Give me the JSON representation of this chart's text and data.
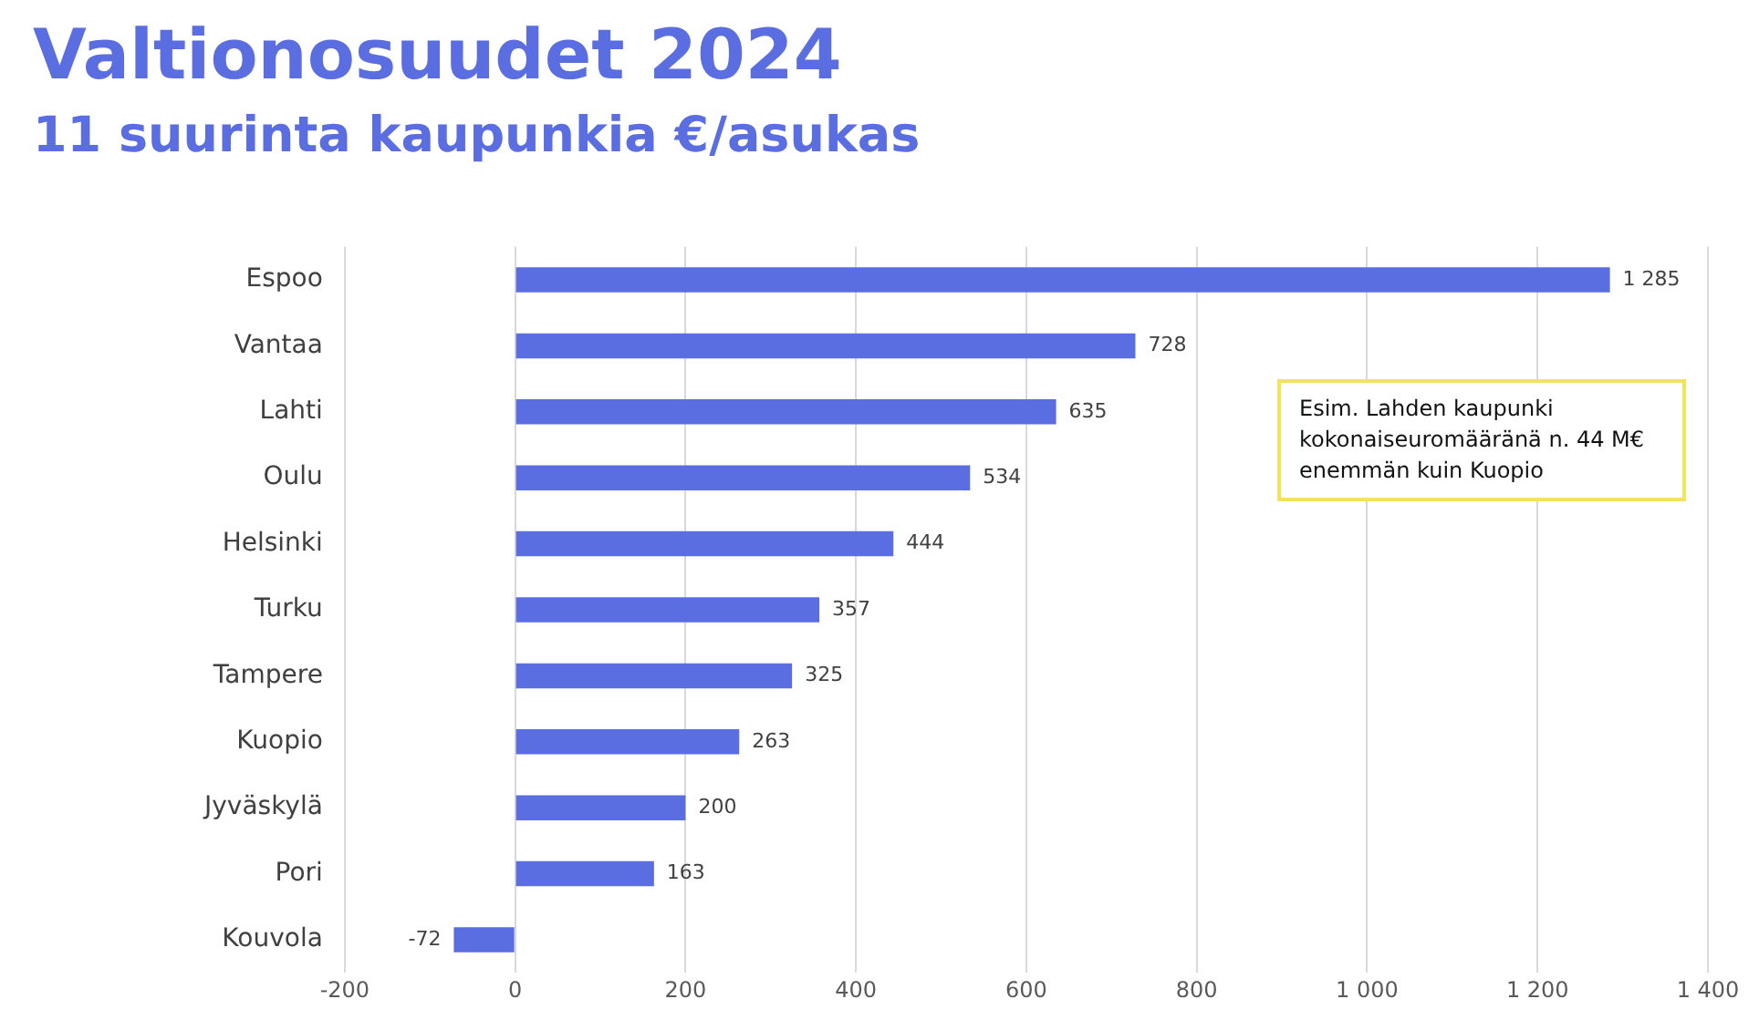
{
  "chart_data": {
    "type": "bar",
    "orientation": "horizontal",
    "title": "Valtionosuudet 2024",
    "subtitle": "11 suurinta kaupunkia €/asukas",
    "categories": [
      "Espoo",
      "Vantaa",
      "Lahti",
      "Oulu",
      "Helsinki",
      "Turku",
      "Tampere",
      "Kuopio",
      "Jyväskylä",
      "Pori",
      "Kouvola"
    ],
    "values": [
      1285,
      728,
      635,
      534,
      444,
      357,
      325,
      263,
      200,
      163,
      -72
    ],
    "value_labels": [
      "1 285",
      "728",
      "635",
      "534",
      "444",
      "357",
      "325",
      "263",
      "200",
      "163",
      "-72"
    ],
    "color": "#5b6ee1",
    "xlim": [
      -200,
      1400
    ],
    "xticks": [
      -200,
      0,
      200,
      400,
      600,
      800,
      {
        "value": 1000,
        "label": "1 000"
      },
      {
        "value": 1200,
        "label": "1 200"
      },
      {
        "value": 1400,
        "label": "1 400"
      }
    ],
    "grid": "x",
    "legend": false,
    "annotations": [
      "Esim. Lahden kaupunki kokonaiseuromääränä n. 44 M€ enemmän kuin Kuopio"
    ]
  }
}
